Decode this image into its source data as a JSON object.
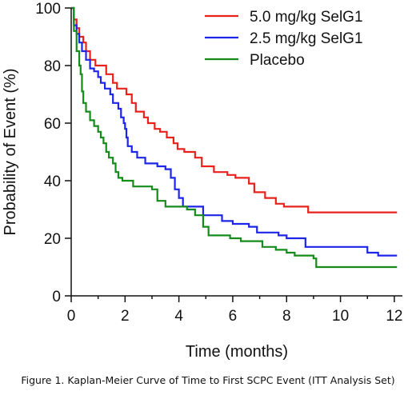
{
  "figure": {
    "caption": "Figure 1. Kaplan-Meier Curve of Time to First SCPC Event (ITT Analysis Set)"
  },
  "chart_data": {
    "type": "line",
    "subtype": "step",
    "title": "",
    "xlabel": "Time (months)",
    "ylabel": "Probability of Event (%)",
    "xlim": [
      0,
      12.3
    ],
    "ylim": [
      0,
      100
    ],
    "xticks": [
      0,
      2,
      4,
      6,
      8,
      10,
      12
    ],
    "yticks": [
      0,
      20,
      40,
      60,
      80,
      100
    ],
    "grid": false,
    "legend_position": "top-right",
    "series": [
      {
        "name": "5.0 mg/kg SelG1",
        "color": "#e8211d",
        "points": [
          [
            0,
            100
          ],
          [
            0.1,
            96
          ],
          [
            0.2,
            93
          ],
          [
            0.3,
            90
          ],
          [
            0.45,
            88
          ],
          [
            0.55,
            85
          ],
          [
            0.7,
            82
          ],
          [
            0.9,
            80
          ],
          [
            1.3,
            77
          ],
          [
            1.55,
            74
          ],
          [
            1.7,
            72
          ],
          [
            2.05,
            70
          ],
          [
            2.25,
            67
          ],
          [
            2.4,
            64
          ],
          [
            2.7,
            62
          ],
          [
            2.85,
            60
          ],
          [
            3.1,
            58
          ],
          [
            3.3,
            57
          ],
          [
            3.55,
            55
          ],
          [
            3.8,
            53
          ],
          [
            3.95,
            51
          ],
          [
            4.2,
            50
          ],
          [
            4.6,
            48
          ],
          [
            4.85,
            45
          ],
          [
            5.3,
            43
          ],
          [
            5.8,
            42
          ],
          [
            6.1,
            41
          ],
          [
            6.6,
            39
          ],
          [
            6.8,
            36
          ],
          [
            7.2,
            34
          ],
          [
            7.6,
            32
          ],
          [
            7.9,
            31
          ],
          [
            8.8,
            29
          ],
          [
            12.1,
            29
          ]
        ]
      },
      {
        "name": "2.5 mg/kg SelG1",
        "color": "#1c25e8",
        "points": [
          [
            0,
            100
          ],
          [
            0.1,
            94
          ],
          [
            0.2,
            91
          ],
          [
            0.3,
            88
          ],
          [
            0.4,
            85
          ],
          [
            0.55,
            82
          ],
          [
            0.7,
            79
          ],
          [
            0.85,
            78
          ],
          [
            1.0,
            76
          ],
          [
            1.1,
            74
          ],
          [
            1.25,
            72
          ],
          [
            1.45,
            70
          ],
          [
            1.55,
            67
          ],
          [
            1.75,
            65
          ],
          [
            1.85,
            62
          ],
          [
            1.95,
            60
          ],
          [
            2.0,
            58
          ],
          [
            2.05,
            55
          ],
          [
            2.1,
            52
          ],
          [
            2.25,
            50
          ],
          [
            2.45,
            48
          ],
          [
            2.75,
            46
          ],
          [
            3.2,
            45
          ],
          [
            3.5,
            44
          ],
          [
            3.7,
            41
          ],
          [
            3.85,
            37
          ],
          [
            4.0,
            34
          ],
          [
            4.15,
            31
          ],
          [
            4.9,
            28
          ],
          [
            5.6,
            26
          ],
          [
            6.0,
            25
          ],
          [
            6.6,
            24
          ],
          [
            6.9,
            22
          ],
          [
            7.7,
            21
          ],
          [
            8.0,
            20
          ],
          [
            8.7,
            17
          ],
          [
            11.0,
            15
          ],
          [
            11.4,
            14
          ],
          [
            12.1,
            14
          ]
        ]
      },
      {
        "name": "Placebo",
        "color": "#158b1c",
        "points": [
          [
            0,
            100
          ],
          [
            0.1,
            92
          ],
          [
            0.2,
            85
          ],
          [
            0.3,
            80
          ],
          [
            0.35,
            77
          ],
          [
            0.4,
            71
          ],
          [
            0.45,
            67
          ],
          [
            0.55,
            64
          ],
          [
            0.7,
            61
          ],
          [
            0.85,
            59
          ],
          [
            1.0,
            57
          ],
          [
            1.1,
            55
          ],
          [
            1.2,
            53
          ],
          [
            1.3,
            50
          ],
          [
            1.4,
            48
          ],
          [
            1.55,
            46
          ],
          [
            1.65,
            43
          ],
          [
            1.75,
            41
          ],
          [
            1.9,
            40
          ],
          [
            2.3,
            38
          ],
          [
            3.0,
            37
          ],
          [
            3.2,
            33
          ],
          [
            3.5,
            31
          ],
          [
            4.3,
            30
          ],
          [
            4.6,
            28
          ],
          [
            4.9,
            24
          ],
          [
            5.1,
            21
          ],
          [
            5.9,
            20
          ],
          [
            6.3,
            19
          ],
          [
            7.1,
            17
          ],
          [
            7.6,
            16
          ],
          [
            8.0,
            15
          ],
          [
            8.3,
            14
          ],
          [
            9.0,
            13
          ],
          [
            9.1,
            10
          ],
          [
            12.1,
            10
          ]
        ]
      }
    ]
  }
}
